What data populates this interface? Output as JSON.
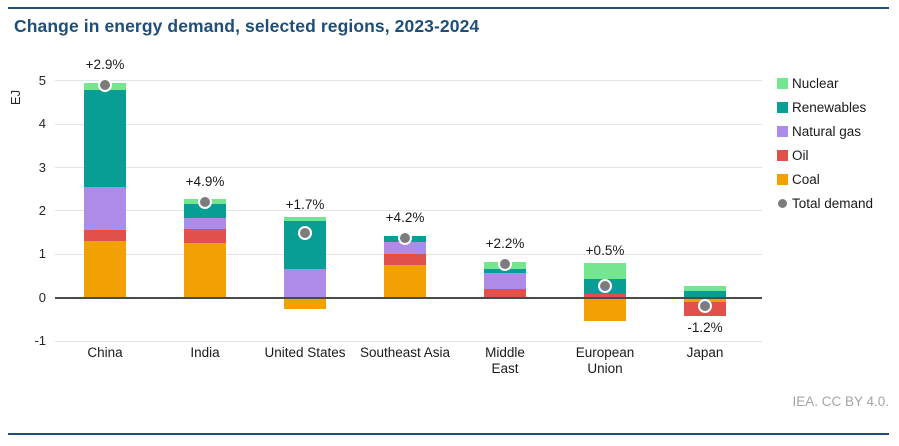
{
  "header": {
    "title": "Change in energy demand, selected regions, 2023-2024"
  },
  "footer": {
    "credit": "IEA. CC BY 4.0."
  },
  "colors": {
    "accent_navy": "#1F4E79",
    "grid": "#e4e4e4",
    "zero_axis": "#4a4a4a",
    "coal": "#F2A104",
    "oil": "#E2504C",
    "natural_gas": "#AC8CE8",
    "renewables": "#089E93",
    "nuclear": "#75E690",
    "total_demand_dot": "#7C7C7C"
  },
  "chart_data": {
    "type": "bar",
    "stacked": true,
    "title": "Change in energy demand, selected regions, 2023-2024",
    "xlabel": "",
    "ylabel": "EJ",
    "unit": "EJ",
    "ylim": [
      -1.4,
      5.5
    ],
    "yticks": [
      5,
      4,
      3,
      2,
      1,
      0,
      -1
    ],
    "grid": true,
    "legend_position": "right",
    "categories": [
      "China",
      "India",
      "United States",
      "Southeast Asia",
      "Middle East",
      "European Union",
      "Japan"
    ],
    "category_label_lines": [
      [
        "China"
      ],
      [
        "India"
      ],
      [
        "United States"
      ],
      [
        "Southeast Asia"
      ],
      [
        "Middle",
        "East"
      ],
      [
        "European",
        "Union"
      ],
      [
        "Japan"
      ]
    ],
    "series": [
      {
        "name": "Coal",
        "color": "#F2A104",
        "values": [
          1.3,
          1.25,
          -0.27,
          0.75,
          0.0,
          -0.53,
          -0.09
        ]
      },
      {
        "name": "Oil",
        "color": "#E2504C",
        "values": [
          0.26,
          0.33,
          0.0,
          0.25,
          0.19,
          0.08,
          -0.33
        ]
      },
      {
        "name": "Natural gas",
        "color": "#AC8CE8",
        "values": [
          1.0,
          0.26,
          0.65,
          0.28,
          0.39,
          0.0,
          0.0
        ]
      },
      {
        "name": "Renewables",
        "color": "#089E93",
        "values": [
          2.22,
          0.31,
          1.12,
          0.15,
          0.07,
          0.36,
          0.15
        ]
      },
      {
        "name": "Nuclear",
        "color": "#75E690",
        "values": [
          0.17,
          0.12,
          0.1,
          0.0,
          0.17,
          0.36,
          0.11
        ]
      }
    ],
    "total_demand": {
      "name": "Total demand",
      "color": "#7C7C7C",
      "values": [
        4.9,
        2.2,
        1.5,
        1.38,
        0.78,
        0.27,
        -0.18
      ]
    },
    "annotations": [
      "+2.9%",
      "+4.9%",
      "+1.7%",
      "+4.2%",
      "+2.2%",
      "+0.5%",
      "-1.2%"
    ],
    "legend_entries": [
      "Nuclear",
      "Renewables",
      "Natural gas",
      "Oil",
      "Coal",
      "Total demand"
    ]
  }
}
